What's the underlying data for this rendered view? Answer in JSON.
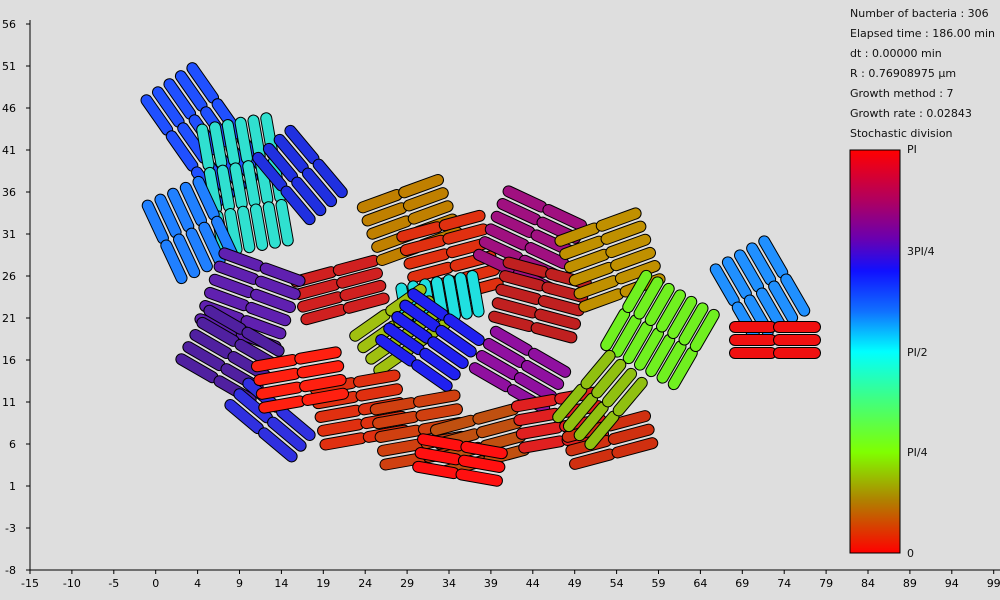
{
  "info": {
    "bacteria_count": "Number of bacteria : 306",
    "elapsed_time": "Elapsed time : 186.00 min",
    "dt": "dt : 0.00000 min",
    "radius": "R : 0.76908975 µm",
    "growth_method": "Growth method : 7",
    "growth_rate": "Growth rate : 0.02843",
    "division": "Stochastic division"
  },
  "colorbar": {
    "labels": [
      "PI",
      "3PI/4",
      "PI/2",
      "PI/4",
      "0"
    ],
    "colors": [
      "#ff0000",
      "#8b008b",
      "#0000ff",
      "#00ffff",
      "#7fff00",
      "#ff0000"
    ]
  },
  "axes": {
    "x_ticks": [
      "-15",
      "-10",
      "-5",
      "0",
      "4",
      "9",
      "14",
      "19",
      "24",
      "29",
      "34",
      "39",
      "44",
      "49",
      "54",
      "59",
      "64",
      "69",
      "74",
      "79",
      "84",
      "89",
      "94",
      "99"
    ],
    "y_ticks": [
      "56",
      "51",
      "46",
      "41",
      "36",
      "31",
      "26",
      "21",
      "16",
      "11",
      "6",
      "1",
      "-3",
      "-8"
    ]
  }
}
